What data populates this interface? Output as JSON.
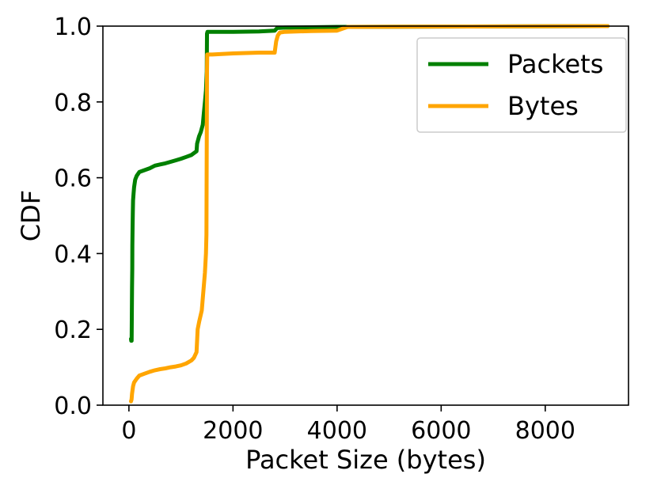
{
  "chart_data": {
    "type": "line",
    "xlabel": "Packet Size (bytes)",
    "ylabel": "CDF",
    "xlim": [
      -500,
      9600
    ],
    "ylim": [
      0,
      1.0
    ],
    "x_ticks": [
      0,
      2000,
      4000,
      6000,
      8000
    ],
    "x_tick_labels": [
      "0",
      "2000",
      "4000",
      "6000",
      "8000"
    ],
    "y_ticks": [
      0.0,
      0.2,
      0.4,
      0.6,
      0.8,
      1.0
    ],
    "y_tick_labels": [
      "0.0",
      "0.2",
      "0.4",
      "0.6",
      "0.8",
      "1.0"
    ],
    "grid": false,
    "legend_position": "top-right",
    "series": [
      {
        "name": "Packets",
        "color": "#008000",
        "x": [
          40,
          45,
          52,
          60,
          64,
          66,
          70,
          75,
          80,
          90,
          100,
          120,
          150,
          200,
          300,
          400,
          500,
          600,
          700,
          800,
          900,
          1000,
          1100,
          1200,
          1250,
          1300,
          1310,
          1330,
          1350,
          1380,
          1400,
          1420,
          1440,
          1460,
          1480,
          1495,
          1500,
          1510,
          1600,
          2000,
          2500,
          2800,
          2850,
          3000,
          4000,
          9200
        ],
        "y": [
          0.175,
          0.17,
          0.17,
          0.31,
          0.36,
          0.42,
          0.47,
          0.51,
          0.54,
          0.56,
          0.575,
          0.595,
          0.605,
          0.615,
          0.62,
          0.625,
          0.632,
          0.635,
          0.638,
          0.642,
          0.646,
          0.65,
          0.655,
          0.66,
          0.665,
          0.67,
          0.69,
          0.7,
          0.71,
          0.72,
          0.73,
          0.74,
          0.77,
          0.8,
          0.83,
          0.88,
          0.98,
          0.985,
          0.985,
          0.985,
          0.986,
          0.988,
          0.995,
          0.996,
          0.998,
          1.0
        ]
      },
      {
        "name": "Bytes",
        "color": "#ffa500",
        "x": [
          40,
          50,
          60,
          80,
          100,
          150,
          200,
          300,
          400,
          500,
          600,
          700,
          800,
          900,
          1000,
          1100,
          1200,
          1250,
          1300,
          1310,
          1320,
          1350,
          1400,
          1430,
          1460,
          1480,
          1490,
          1495,
          1500,
          1505,
          1600,
          2000,
          2500,
          2800,
          2830,
          2860,
          2900,
          3000,
          3500,
          4000,
          4200,
          9200
        ],
        "y": [
          0.01,
          0.015,
          0.03,
          0.05,
          0.06,
          0.07,
          0.078,
          0.083,
          0.088,
          0.092,
          0.095,
          0.097,
          0.1,
          0.102,
          0.105,
          0.11,
          0.118,
          0.125,
          0.14,
          0.17,
          0.2,
          0.22,
          0.25,
          0.3,
          0.35,
          0.4,
          0.45,
          0.7,
          0.88,
          0.925,
          0.925,
          0.928,
          0.93,
          0.93,
          0.96,
          0.975,
          0.983,
          0.985,
          0.987,
          0.988,
          0.998,
          1.0
        ]
      }
    ]
  }
}
